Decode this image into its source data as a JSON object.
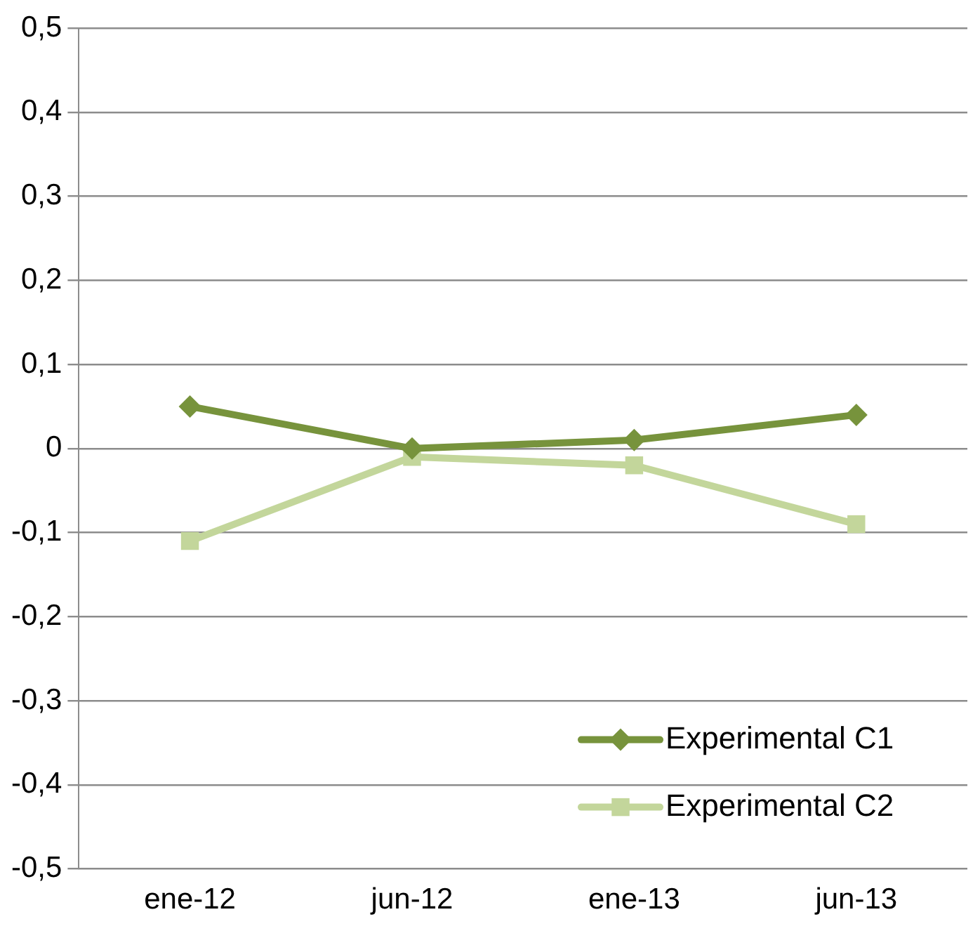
{
  "chart_data": {
    "type": "line",
    "categories": [
      "ene-12",
      "jun-12",
      "ene-13",
      "jun-13"
    ],
    "series": [
      {
        "name": "Experimental C1",
        "color": "#77933c",
        "marker": "diamond",
        "values": [
          0.05,
          0,
          0.01,
          0.04
        ]
      },
      {
        "name": "Experimental C2",
        "color": "#c3d69b",
        "marker": "square",
        "values": [
          -0.11,
          -0.01,
          -0.02,
          -0.09
        ]
      }
    ],
    "ylim": [
      -0.5,
      0.5
    ],
    "yticks": [
      {
        "value": -0.5,
        "label": "-0,5"
      },
      {
        "value": -0.4,
        "label": "-0,4"
      },
      {
        "value": -0.3,
        "label": "-0,3"
      },
      {
        "value": -0.2,
        "label": "-0,2"
      },
      {
        "value": -0.1,
        "label": "-0,1"
      },
      0,
      {
        "value": 0.1,
        "label": "0,1"
      },
      {
        "value": 0.2,
        "label": "0,2"
      },
      {
        "value": 0.3,
        "label": "0,3"
      },
      {
        "value": 0.4,
        "label": "0,4"
      },
      {
        "value": 0.5,
        "label": "0,5"
      }
    ],
    "grid": "y",
    "legend": "bottom right",
    "line_style": "solid"
  }
}
